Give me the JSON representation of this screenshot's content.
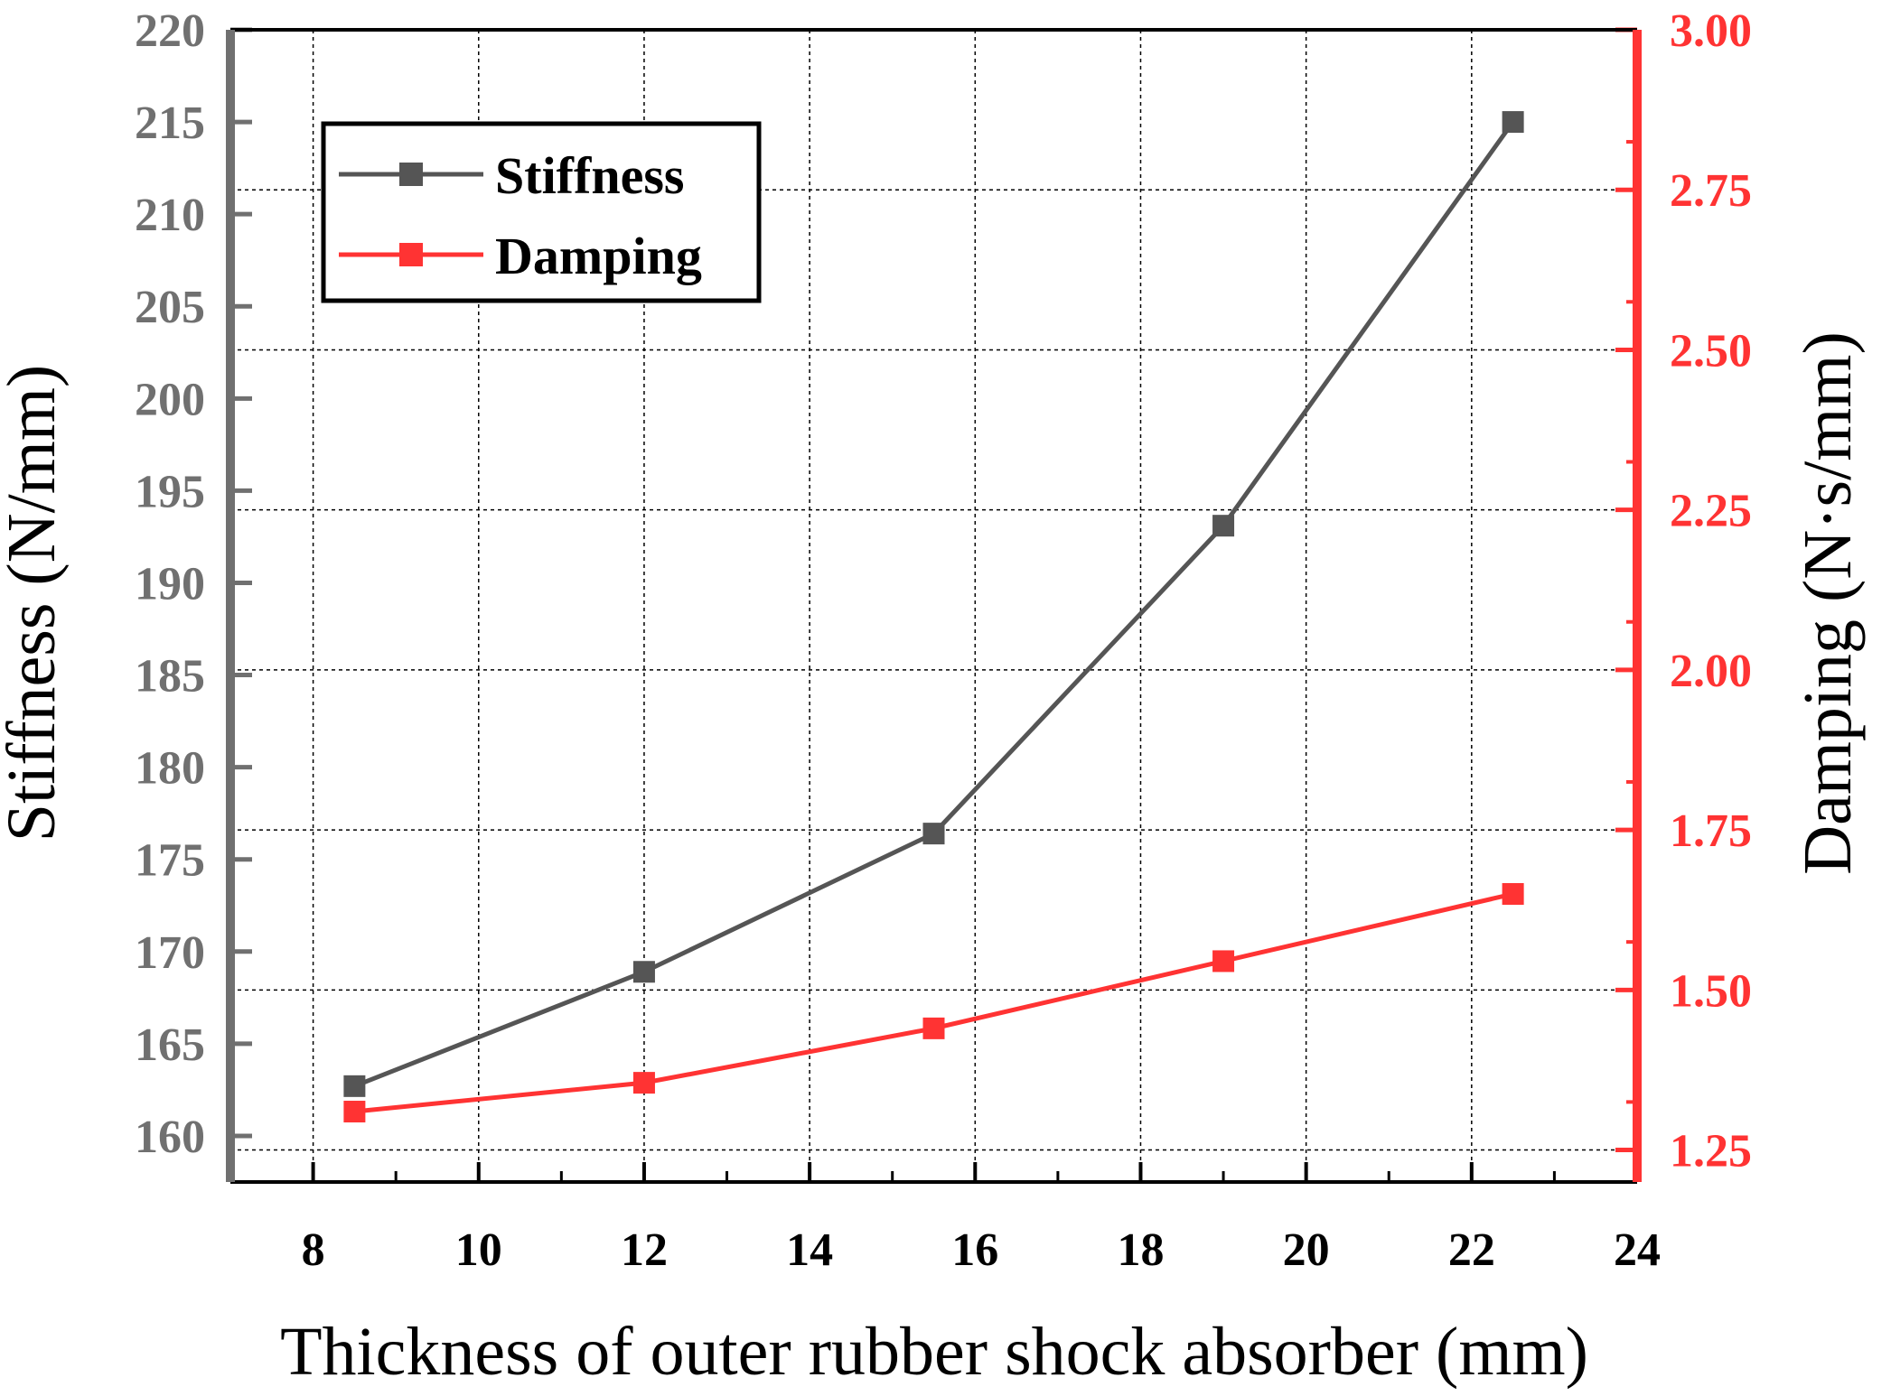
{
  "chart_data": {
    "type": "line",
    "xlabel": "Thickness of outer rubber shock absorber (mm)",
    "ylabel_left": "Stiffness (N/mm)",
    "ylabel_right": "Damping (N·s/mm)",
    "xlim": [
      7,
      24
    ],
    "ylim_left": [
      157.5,
      220
    ],
    "ylim_right": [
      1.2,
      3.0
    ],
    "x_ticks": [
      8,
      10,
      12,
      14,
      16,
      18,
      20,
      22,
      24
    ],
    "x_tick_labels": [
      "8",
      "10",
      "12",
      "14",
      "16",
      "18",
      "20",
      "22",
      "24"
    ],
    "y_left_ticks": [
      160,
      165,
      170,
      175,
      180,
      185,
      190,
      195,
      200,
      205,
      210,
      215,
      220
    ],
    "y_left_tick_labels": [
      "160",
      "165",
      "170",
      "175",
      "180",
      "185",
      "190",
      "195",
      "200",
      "205",
      "210",
      "215",
      "220"
    ],
    "y_right_ticks": [
      1.25,
      1.5,
      1.75,
      2.0,
      2.25,
      2.5,
      2.75,
      3.0
    ],
    "y_right_tick_labels": [
      "1.25",
      "1.50",
      "1.75",
      "2.00",
      "2.25",
      "2.50",
      "2.75",
      "3.00"
    ],
    "grid": true,
    "legend_position": "top-left",
    "x": [
      8.5,
      12,
      15.5,
      19,
      22.5
    ],
    "series": [
      {
        "name": "Stiffness",
        "axis": "left",
        "color": "#555555",
        "values": [
          162.7,
          168.9,
          176.4,
          193.1,
          215.0
        ]
      },
      {
        "name": "Damping",
        "axis": "right",
        "color": "#ff3333",
        "values": [
          1.31,
          1.355,
          1.44,
          1.545,
          1.65
        ]
      }
    ],
    "colors": {
      "left_axis": "#707070",
      "right_axis": "#ff3333",
      "grid": "#000000",
      "frame": "#000000"
    }
  }
}
